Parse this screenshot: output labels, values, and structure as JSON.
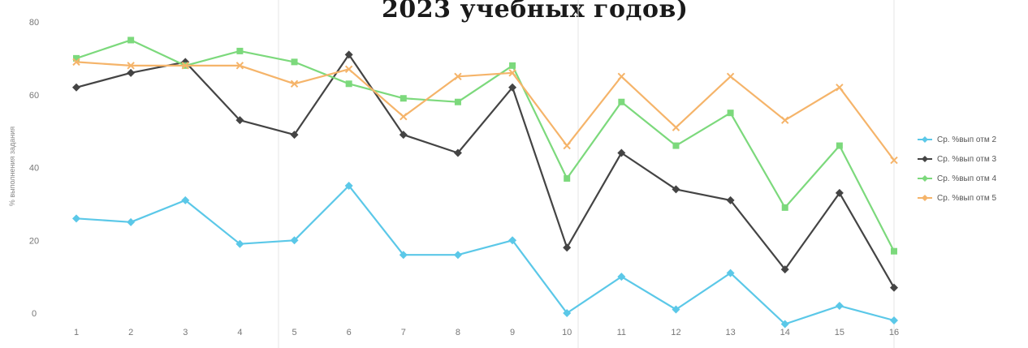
{
  "chart_data": {
    "type": "line",
    "title": "2023 учебных годов)",
    "ylabel": "% выполнения задания",
    "xlabel": "",
    "categories": [
      "1",
      "2",
      "3",
      "4",
      "5",
      "6",
      "7",
      "8",
      "9",
      "10",
      "11",
      "12",
      "13",
      "14",
      "15",
      "16"
    ],
    "ylim": [
      0,
      80
    ],
    "yticks": [
      "0",
      "20",
      "40",
      "60",
      "80"
    ],
    "grid": false,
    "legend_position": "right",
    "series": [
      {
        "name": "Ср. %вып отм 2",
        "color": "#5bc8e8",
        "marker": "diamond",
        "values": [
          26,
          25,
          31,
          19,
          20,
          35,
          16,
          16,
          20,
          0,
          10,
          1,
          11,
          -3,
          2,
          -2
        ]
      },
      {
        "name": "Ср. %вып отм 3",
        "color": "#444444",
        "marker": "diamond",
        "values": [
          62,
          66,
          69,
          53,
          49,
          71,
          49,
          44,
          62,
          18,
          44,
          34,
          31,
          12,
          33,
          7
        ]
      },
      {
        "name": "Ср. %вып отм 4",
        "color": "#7cd97c",
        "marker": "square",
        "values": [
          70,
          75,
          68,
          72,
          69,
          63,
          59,
          58,
          68,
          37,
          58,
          46,
          55,
          29,
          46,
          17
        ]
      },
      {
        "name": "Ср. %вып отм 5",
        "color": "#f5b46a",
        "marker": "x",
        "values": [
          69,
          68,
          68,
          68,
          63,
          67,
          54,
          65,
          66,
          46,
          65,
          51,
          65,
          53,
          62,
          42
        ]
      }
    ]
  }
}
